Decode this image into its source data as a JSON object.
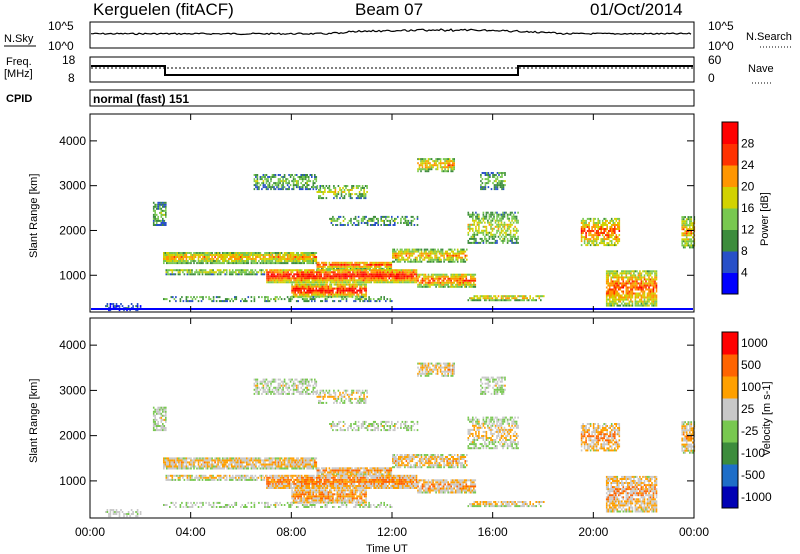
{
  "header": {
    "station": "Kerguelen (fitACF)",
    "beam": "Beam 07",
    "date": "01/Oct/2014"
  },
  "top_panels": {
    "nsky_label": "N.Sky",
    "nsky_ticks": [
      "10^5",
      "10^0"
    ],
    "nsearch_label": "N.Search",
    "nsearch_ticks": [
      "10^5",
      "10^0"
    ],
    "freq_label_1": "Freq.",
    "freq_label_2": "[MHz]",
    "freq_ticks": [
      "18",
      "8"
    ],
    "nave_label": "Nave",
    "nave_ticks": [
      "60",
      "0"
    ],
    "cpid_label": "CPID",
    "cpid_text": "normal (fast) 151"
  },
  "chart_data": [
    {
      "type": "heatmap",
      "name": "power",
      "ylabel": "Slant Range [km]",
      "ylim": [
        180,
        4600
      ],
      "yticks": [
        "1000",
        "2000",
        "3000",
        "4000"
      ],
      "xlim": [
        0,
        24
      ],
      "colorbar_label": "Power [dB]",
      "colorbar_ticks": [
        "4",
        "8",
        "12",
        "16",
        "20",
        "24",
        "28"
      ],
      "colors": [
        "#0000ff",
        "#2850c8",
        "#3c8c3c",
        "#78c850",
        "#d2d200",
        "#ff9600",
        "#ff3200",
        "#ff0000"
      ]
    },
    {
      "type": "heatmap",
      "name": "velocity",
      "ylabel": "Slant Range [km]",
      "ylim": [
        180,
        4600
      ],
      "yticks": [
        "1000",
        "2000",
        "3000",
        "4000"
      ],
      "xlim": [
        0,
        24
      ],
      "colorbar_label": "Velocity [m s-1]",
      "colorbar_ticks": [
        "1000",
        "500",
        "100",
        "25",
        "-25",
        "-100",
        "-500",
        "-1000"
      ],
      "colors": [
        "#0000b4",
        "#1e6ec8",
        "#3c8c3c",
        "#78c850",
        "#c8c8c8",
        "#ffa000",
        "#ff6400",
        "#ff0000"
      ],
      "xticks": [
        "00:00",
        "04:00",
        "08:00",
        "12:00",
        "16:00",
        "20:00",
        "00:00"
      ],
      "xlabel": "Time UT"
    }
  ]
}
